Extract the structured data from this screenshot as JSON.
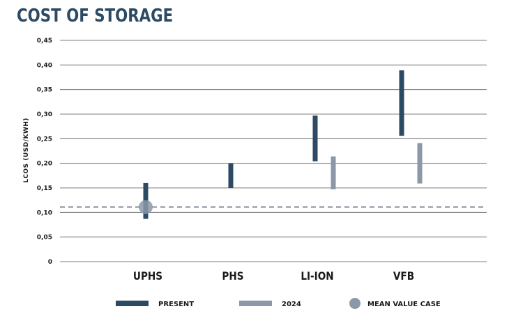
{
  "chart_data": {
    "type": "range-bar",
    "title": "COST OF STORAGE",
    "ylabel": "LCOS (USD/KWH)",
    "xlabel": "",
    "ylim": [
      0,
      0.45
    ],
    "yticks": [
      {
        "value": 0,
        "label": "0"
      },
      {
        "value": 0.05,
        "label": "0,05"
      },
      {
        "value": 0.1,
        "label": "0,10"
      },
      {
        "value": 0.15,
        "label": "0,15"
      },
      {
        "value": 0.2,
        "label": "0,20"
      },
      {
        "value": 0.25,
        "label": "0,25"
      },
      {
        "value": 0.3,
        "label": "0,30"
      },
      {
        "value": 0.35,
        "label": "0,35"
      },
      {
        "value": 0.4,
        "label": "0,40"
      },
      {
        "value": 0.45,
        "label": "0,45"
      }
    ],
    "grid": true,
    "categories": [
      "UPHS",
      "PHS",
      "LI-ION",
      "VFB"
    ],
    "series": [
      {
        "name": "PRESENT",
        "color": "#2c4a63",
        "ranges": [
          [
            0.087,
            0.16
          ],
          [
            0.15,
            0.2
          ],
          [
            0.204,
            0.297
          ],
          [
            0.256,
            0.389
          ]
        ]
      },
      {
        "name": "2024",
        "color": "#8a98a8",
        "ranges": [
          null,
          null,
          [
            0.147,
            0.214
          ],
          [
            0.159,
            0.241
          ]
        ]
      }
    ],
    "mean_value_case": {
      "name": "MEAN VALUE CASE",
      "category": "UPHS",
      "value": 0.111,
      "color": "#8a98a8"
    },
    "reference_line": {
      "value": 0.111,
      "style": "dashed",
      "color": "#4a5a6e"
    },
    "legend_position": "bottom",
    "colors": {
      "title": "#2c4a63",
      "grid": "#555555",
      "text": "#1a1a1a"
    }
  }
}
